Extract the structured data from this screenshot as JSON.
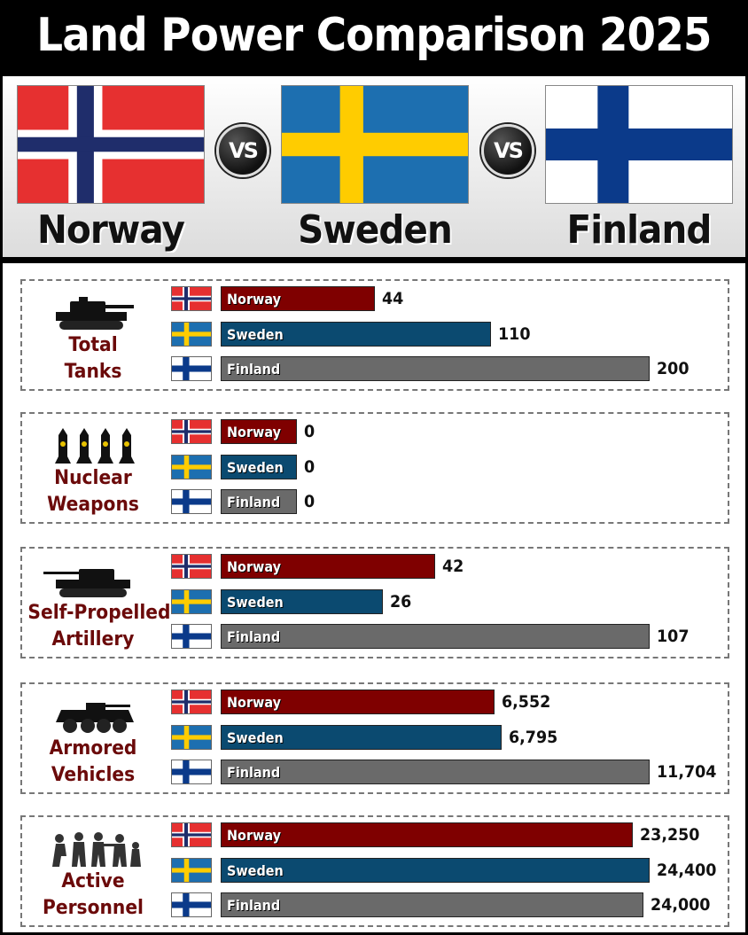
{
  "title": "Land Power Comparison 2025",
  "vs_label": "VS",
  "countries": [
    {
      "name": "Norway",
      "flag": "norway"
    },
    {
      "name": "Sweden",
      "flag": "sweden"
    },
    {
      "name": "Finland",
      "flag": "finland"
    }
  ],
  "colors": {
    "Norway": "#7f0000",
    "Sweden": "#0b4a70",
    "Finland": "#6a6a6a",
    "label": "#6b0a0a"
  },
  "chart_data": [
    {
      "type": "bar",
      "title": "Total Tanks",
      "icon": "tank-icon",
      "categories": [
        "Norway",
        "Sweden",
        "Finland"
      ],
      "values": [
        44,
        110,
        200
      ],
      "value_labels": [
        "44",
        "110",
        "200"
      ],
      "xlim": [
        0,
        200
      ]
    },
    {
      "type": "bar",
      "title": "Nuclear Weapons",
      "icon": "nuclear-missiles-icon",
      "categories": [
        "Norway",
        "Sweden",
        "Finland"
      ],
      "values": [
        0,
        0,
        0
      ],
      "value_labels": [
        "0",
        "0",
        "0"
      ],
      "xlim": [
        0,
        200
      ]
    },
    {
      "type": "bar",
      "title": "Self-Propelled Artillery",
      "icon": "artillery-icon",
      "categories": [
        "Norway",
        "Sweden",
        "Finland"
      ],
      "values": [
        42,
        26,
        107
      ],
      "value_labels": [
        "42",
        "26",
        "107"
      ],
      "xlim": [
        0,
        107
      ]
    },
    {
      "type": "bar",
      "title": "Armored Vehicles",
      "icon": "armored-vehicle-icon",
      "categories": [
        "Norway",
        "Sweden",
        "Finland"
      ],
      "values": [
        6552,
        6795,
        11704
      ],
      "value_labels": [
        "6,552",
        "6,795",
        "11,704"
      ],
      "xlim": [
        0,
        11704
      ]
    },
    {
      "type": "bar",
      "title": "Active Personnel",
      "icon": "soldiers-icon",
      "categories": [
        "Norway",
        "Sweden",
        "Finland"
      ],
      "values": [
        23250,
        24400,
        24000
      ],
      "value_labels": [
        "23,250",
        "24,400",
        "24,000"
      ],
      "xlim": [
        0,
        24400
      ]
    }
  ]
}
